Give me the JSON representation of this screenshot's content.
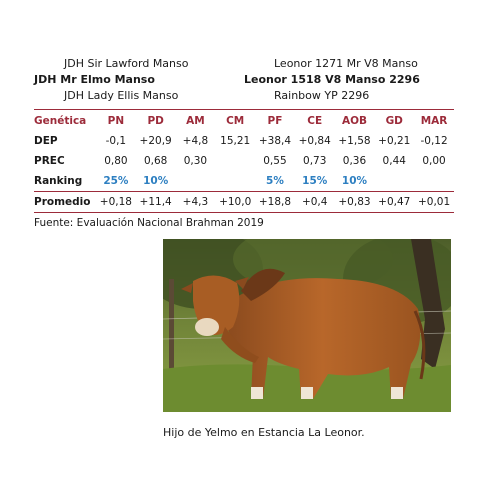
{
  "pedigree": {
    "row1": {
      "left": "JDH Sir Lawford Manso",
      "right": "Leonor 1271 Mr V8 Manso"
    },
    "row2": {
      "left": "JDH Mr Elmo Manso",
      "right": "Leonor 1518 V8 Manso 2296"
    },
    "row3": {
      "left": "JDH Lady Ellis Manso",
      "right": "Rainbow YP 2296"
    }
  },
  "table": {
    "header": [
      "Genética",
      "PN",
      "PD",
      "AM",
      "CM",
      "PF",
      "CE",
      "AOB",
      "GD",
      "MAR"
    ],
    "rows": [
      {
        "label": "DEP",
        "cells": [
          "-0,1",
          "+20,9",
          "+4,8",
          "15,21",
          "+38,4",
          "+0,84",
          "+1,58",
          "+0,21",
          "-0,12"
        ]
      },
      {
        "label": "PREC",
        "cells": [
          "0,80",
          "0,68",
          "0,30",
          "",
          "0,55",
          "0,73",
          "0,36",
          "0,44",
          "0,00"
        ]
      },
      {
        "label": "Ranking",
        "cells": [
          "25%",
          "10%",
          "",
          "",
          "5%",
          "15%",
          "10%",
          "",
          ""
        ]
      },
      {
        "label": "Promedio",
        "cells": [
          "+0,18",
          "+11,4",
          "+4,3",
          "+10,0",
          "+18,8",
          "+0,4",
          "+0,83",
          "+0,47",
          "+0,01"
        ]
      }
    ]
  },
  "source": "Fuente: Evaluación Nacional Brahman 2019",
  "photo": {
    "caption": "Hijo de Yelmo en Estancia La Leonor."
  },
  "colors": {
    "accent": "#9c2b3a",
    "ranking": "#2d7fc1"
  }
}
